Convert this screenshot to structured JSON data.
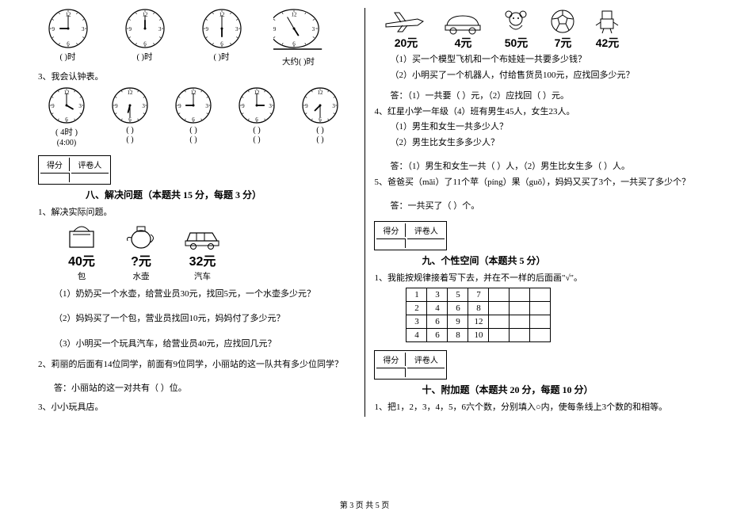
{
  "left": {
    "clocksA": [
      {
        "label": "(    )时",
        "h": 9,
        "m": 0,
        "type": "round"
      },
      {
        "label": "(    )时",
        "h": 12,
        "m": 0,
        "type": "round"
      },
      {
        "label": "(    )时",
        "h": 6,
        "m": 0,
        "type": "round"
      },
      {
        "label": "大约(    )时",
        "h": 4,
        "m": 55,
        "type": "oval"
      }
    ],
    "q3_title": "3、我会认钟表。",
    "clocksB": [
      {
        "label": "( 4时 )",
        "sub": "(4:00)",
        "h": 4,
        "m": 0
      },
      {
        "label": "(    )",
        "sub": "(    )",
        "h": 6,
        "m": 30
      },
      {
        "label": "(    )",
        "sub": "(    )",
        "h": 9,
        "m": 0
      },
      {
        "label": "(    )",
        "sub": "(    )",
        "h": 3,
        "m": 0
      },
      {
        "label": "(    )",
        "sub": "(    )",
        "h": 7,
        "m": 30
      }
    ],
    "score_header": [
      "得分",
      "评卷人"
    ],
    "section8": "八、解决问题（本题共 15 分，每题 3 分）",
    "q1": "1、解决实际问题。",
    "shop": [
      {
        "price": "40元",
        "name": "包"
      },
      {
        "price": "?元",
        "name": "水壶"
      },
      {
        "price": "32元",
        "name": "汽车"
      }
    ],
    "sub1": "（1）奶奶买一个水壶，给营业员30元，找回5元，一个水壶多少元？",
    "sub2": "（2）妈妈买了一个包，营业员找回10元，妈妈付了多少元？",
    "sub3": "（3）小明买一个玩具汽车，给营业员40元，应找回几元？",
    "q2": "2、莉丽的后面有14位同学，前面有9位同学，小丽站的这一队共有多少位同学？",
    "ans2": "答：小丽站的这一对共有（  ）位。",
    "q3": "3、小小玩具店。"
  },
  "right": {
    "toys": [
      {
        "price": "20元"
      },
      {
        "price": "4元"
      },
      {
        "price": "50元"
      },
      {
        "price": "7元"
      },
      {
        "price": "42元"
      }
    ],
    "tq1": "（1）买一个模型飞机和一个布娃娃一共要多少钱？",
    "tq2": "（2）小明买了一个机器人，付给售货员100元，应找回多少元？",
    "tans": "答：（1）一共要（   ）元，（2）应找回（   ）元。",
    "q4": "4、红星小学一年级（4）班有男生45人，女生23人。",
    "q4_1": "（1）男生和女生一共多少人？",
    "q4_2": "（2）男生比女生多多少人？",
    "q4_ans": "答：（1）男生和女生一共（  ）人，（2）男生比女生多（  ）人。",
    "q5": "5、爸爸买（mǎi）了11个苹（píng）果（guǒ），妈妈又买了3个，一共买了多少个？",
    "q5_ans": "答：一共买了（  ）个。",
    "score_header": [
      "得分",
      "评卷人"
    ],
    "section9": "九、个性空间（本题共 5 分）",
    "p1": "1、我能按规律接着写下去，并在不一样的后面画\"√\"。",
    "pattern": [
      [
        "1",
        "3",
        "5",
        "7",
        "",
        "",
        ""
      ],
      [
        "2",
        "4",
        "6",
        "8",
        "",
        "",
        ""
      ],
      [
        "3",
        "6",
        "9",
        "12",
        "",
        "",
        ""
      ],
      [
        "4",
        "6",
        "8",
        "10",
        "",
        "",
        ""
      ]
    ],
    "section10": "十、附加题（本题共 20 分，每题 10 分）",
    "a1": "1、把1，2，3，4，5，6六个数，分别填入○内，使每条线上3个数的和相等。"
  },
  "footer": "第 3 页  共 5 页"
}
